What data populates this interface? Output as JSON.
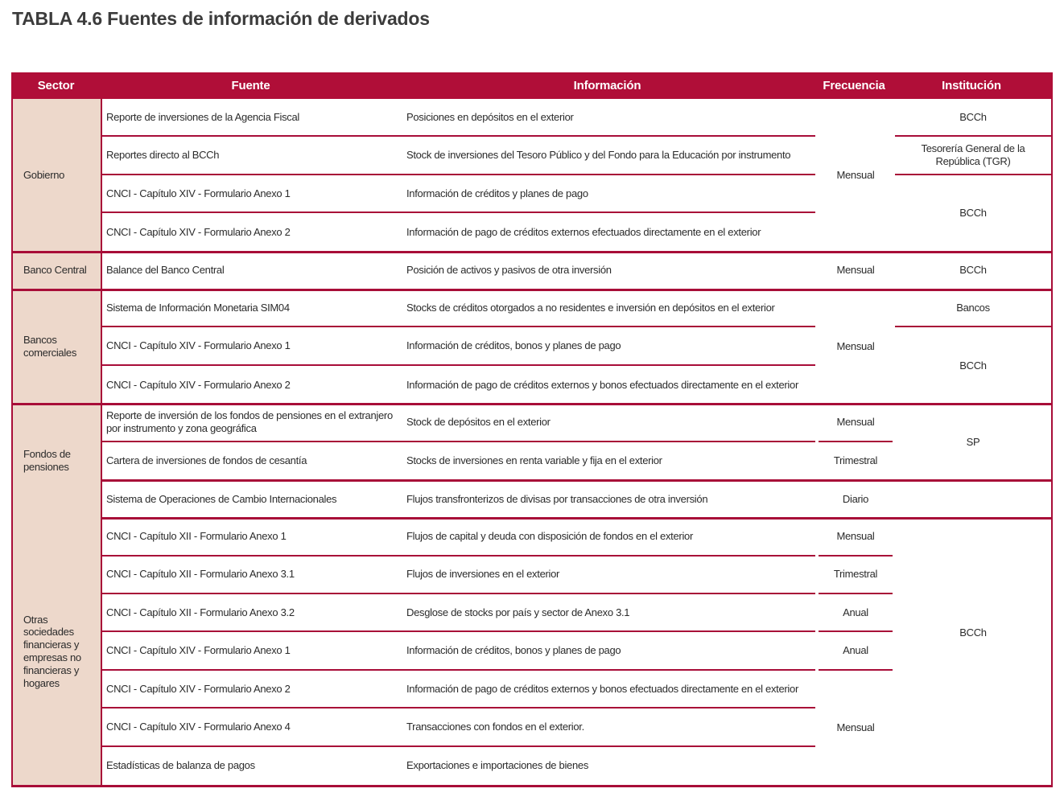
{
  "page_title": "TABLA 4.6 Fuentes de información de derivados",
  "colors": {
    "header_bg": "#B00E38",
    "rule_red": "#A80D38",
    "sector_bg": "#EDD8CB",
    "text": "#2B2B2B",
    "title_text": "#3C3C3C"
  },
  "table": {
    "columns": [
      "Sector",
      "Fuente",
      "Información",
      "Frecuencia",
      "Institución"
    ],
    "sections": [
      {
        "label": "Gobierno",
        "row": 1,
        "span": 4
      },
      {
        "label": "Banco Central",
        "row": 5,
        "span": 1
      },
      {
        "label": "Bancos comerciales",
        "row": 6,
        "span": 3
      },
      {
        "label": "Fondos de pensiones",
        "row": 9,
        "span": 3
      },
      {
        "label": "Otras sociedades financieras y empresas no financieras y hogares",
        "row": 12,
        "span": 7
      }
    ],
    "rows": [
      {
        "fuente": "Reporte de inversiones de la Agencia Fiscal",
        "informacion": "Posiciones en depósitos en el exterior"
      },
      {
        "fuente": "Reportes directo al BCCh",
        "informacion": "Stock de inversiones del Tesoro Público y del Fondo para la Educación por instrumento"
      },
      {
        "fuente": "CNCI - Capítulo XIV - Formulario Anexo 1",
        "informacion": "Información de créditos y planes de pago"
      },
      {
        "fuente": "CNCI - Capítulo XIV - Formulario Anexo 2",
        "informacion": "Información de pago de créditos externos efectuados directamente en el exterior"
      },
      {
        "fuente": "Balance del Banco Central",
        "informacion": "Posición de activos y pasivos de otra inversión"
      },
      {
        "fuente": "Sistema de Información Monetaria SIM04",
        "informacion": "Stocks de créditos otorgados a no residentes e inversión en depósitos en el exterior"
      },
      {
        "fuente": "CNCI - Capítulo XIV - Formulario Anexo 1",
        "informacion": "Información de créditos, bonos y planes de pago"
      },
      {
        "fuente": "CNCI - Capítulo XIV - Formulario Anexo 2",
        "informacion": "Información de pago de créditos externos y bonos efectuados directamente en el exterior"
      },
      {
        "fuente": "Reporte de inversión de los fondos de pensiones en el extranjero por instrumento y zona geográfica",
        "informacion": "Stock de depósitos en el exterior"
      },
      {
        "fuente": "Cartera de inversiones de fondos de cesantía",
        "informacion": "Stocks de inversiones en renta variable y fija en el exterior"
      },
      {
        "fuente": "Sistema de Operaciones de Cambio Internacionales",
        "informacion": "Flujos transfronterizos de divisas por transacciones de otra inversión"
      },
      {
        "fuente": "CNCI - Capítulo XII - Formulario Anexo 1",
        "informacion": "Flujos de capital y deuda con disposición de fondos en el exterior"
      },
      {
        "fuente": "CNCI - Capítulo XII - Formulario Anexo 3.1",
        "informacion": "Flujos de inversiones en el exterior"
      },
      {
        "fuente": "CNCI - Capítulo XII - Formulario Anexo 3.2",
        "informacion": "Desglose de stocks por país y sector de Anexo 3.1"
      },
      {
        "fuente": "CNCI - Capítulo XIV - Formulario Anexo 1",
        "informacion": "Información de créditos, bonos y planes de pago"
      },
      {
        "fuente": "CNCI - Capítulo XIV - Formulario Anexo 2",
        "informacion": "Información de pago de créditos externos y bonos efectuados directamente en el exterior"
      },
      {
        "fuente": "CNCI - Capítulo XIV - Formulario Anexo 4",
        "informacion": "Transacciones con fondos en el exterior."
      },
      {
        "fuente": "Estadísticas de balanza de pagos",
        "informacion": "Exportaciones e importaciones de bienes"
      }
    ],
    "frecuencia": [
      {
        "label": "Mensual",
        "row": 1,
        "span": 4
      },
      {
        "label": "Mensual",
        "row": 5,
        "span": 1
      },
      {
        "label": "Mensual",
        "row": 6,
        "span": 3
      },
      {
        "label": "Mensual",
        "row": 9,
        "span": 1
      },
      {
        "label": "Trimestral",
        "row": 10,
        "span": 1
      },
      {
        "label": "Diario",
        "row": 11,
        "span": 1
      },
      {
        "label": "Mensual",
        "row": 12,
        "span": 1
      },
      {
        "label": "Trimestral",
        "row": 13,
        "span": 1
      },
      {
        "label": "Anual",
        "row": 14,
        "span": 1
      },
      {
        "label": "Anual",
        "row": 15,
        "span": 1
      },
      {
        "label": "Mensual",
        "row": 16,
        "span": 3
      }
    ],
    "institucion": [
      {
        "label": "BCCh",
        "row": 1,
        "span": 1
      },
      {
        "label": "Tesorería General de la República (TGR)",
        "row": 2,
        "span": 1
      },
      {
        "label": "BCCh",
        "row": 3,
        "span": 2
      },
      {
        "label": "BCCh",
        "row": 5,
        "span": 1
      },
      {
        "label": "Bancos",
        "row": 6,
        "span": 1
      },
      {
        "label": "BCCh",
        "row": 7,
        "span": 2
      },
      {
        "label": "SP",
        "row": 9,
        "span": 2
      },
      {
        "label": "BCCh",
        "row": 11,
        "span": 8
      }
    ]
  }
}
